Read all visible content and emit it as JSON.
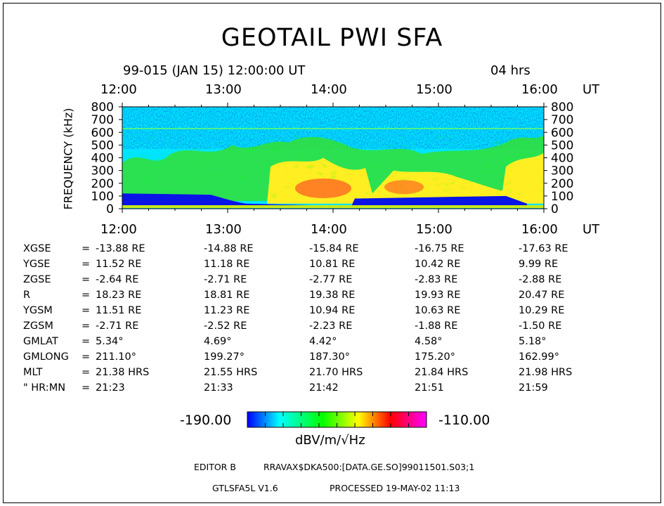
{
  "header": {
    "title": "GEOTAIL PWI SFA",
    "date_line": "99-015 (JAN 15) 12:00:00 UT",
    "duration": "04 hrs"
  },
  "chart_data": {
    "type": "heatmap",
    "title": "GEOTAIL PWI SFA",
    "ylabel": "FREQUENCY (kHz)",
    "xlabel": "UT",
    "x_ticks": [
      "12:00",
      "13:00",
      "14:00",
      "15:00",
      "16:00"
    ],
    "y_ticks": [
      "0",
      "100",
      "200",
      "300",
      "400",
      "500",
      "600",
      "700",
      "800"
    ],
    "xlim": [
      "12:00",
      "16:00"
    ],
    "ylim": [
      0,
      800
    ],
    "colorbar": {
      "min": "-190.00",
      "max": "-110.00",
      "unit": "dBV/m/√Hz"
    },
    "colors": [
      "#0000ff",
      "#00ffff",
      "#00ff00",
      "#ffff00",
      "#ff0000",
      "#ff00ff"
    ]
  },
  "ephemeris": {
    "rows": [
      {
        "label": "XGSE",
        "eq": "=",
        "values": [
          "-13.88 RE",
          "-14.88 RE",
          "-15.84 RE",
          "-16.75 RE",
          "-17.63 RE"
        ]
      },
      {
        "label": "YGSE",
        "eq": "=",
        "values": [
          "11.52 RE",
          "11.18 RE",
          "10.81 RE",
          "10.42 RE",
          "9.99 RE"
        ]
      },
      {
        "label": "ZGSE",
        "eq": "=",
        "values": [
          "-2.64 RE",
          "-2.71 RE",
          "-2.77 RE",
          "-2.83 RE",
          "-2.88 RE"
        ]
      },
      {
        "label": "R",
        "eq": "=",
        "values": [
          "18.23 RE",
          "18.81 RE",
          "19.38 RE",
          "19.93 RE",
          "20.47 RE"
        ]
      },
      {
        "label": "YGSM",
        "eq": "=",
        "values": [
          "11.51 RE",
          "11.23 RE",
          "10.94 RE",
          "10.63 RE",
          "10.29 RE"
        ]
      },
      {
        "label": "ZGSM",
        "eq": "=",
        "values": [
          "-2.71 RE",
          "-2.52 RE",
          "-2.23 RE",
          "-1.88 RE",
          "-1.50 RE"
        ]
      },
      {
        "label": "GMLAT",
        "eq": "=",
        "values": [
          "5.34°",
          "4.69°",
          "4.42°",
          "4.58°",
          "5.18°"
        ]
      },
      {
        "label": "GMLONG",
        "eq": "=",
        "values": [
          "211.10°",
          "199.27°",
          "187.30°",
          "175.20°",
          "162.99°"
        ]
      },
      {
        "label": "MLT",
        "eq": "=",
        "values": [
          "21.38 HRS",
          "21.55 HRS",
          "21.70 HRS",
          "21.84 HRS",
          "21.98 HRS"
        ]
      },
      {
        "label": "\" HR:MN",
        "eq": "=",
        "values": [
          "21:23",
          "21:33",
          "21:42",
          "21:51",
          "21:59"
        ]
      }
    ]
  },
  "footer": {
    "editor": "EDITOR B",
    "path": "RRAVAX$DKA500:[DATA.GE.SO]99011501.S03;1",
    "program": "GTLSFA5L V1.6",
    "processed": "PROCESSED 19-MAY-02 11:13"
  }
}
